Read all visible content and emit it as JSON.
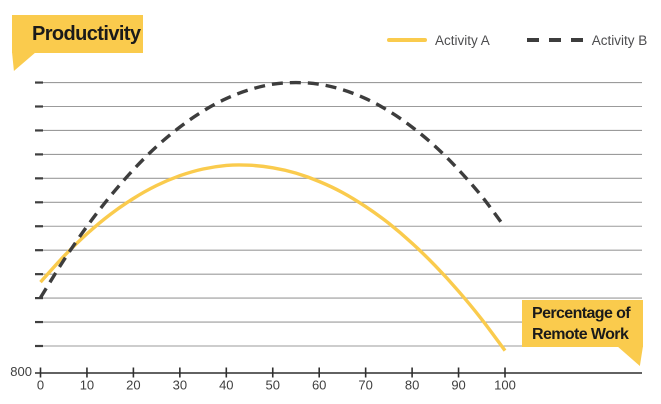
{
  "colors": {
    "accent": "#FACB4D",
    "accent_line": "#FACB4D",
    "dark_line": "#3D3D3D",
    "gridline": "#9B9B9B",
    "gridline_tick": "#3F3F3F",
    "axis": "#2F2F2F"
  },
  "callouts": {
    "y_axis_label": "Productivity",
    "x_axis_label_line1": "Percentage of",
    "x_axis_label_line2": "Remote Work"
  },
  "legend": [
    {
      "label": "Activity A",
      "style": "solid",
      "color": "#FACB4D"
    },
    {
      "label": "Activity B",
      "style": "dashed",
      "color": "#3D3D3D"
    }
  ],
  "chart_data": {
    "type": "line",
    "title": "",
    "xlabel": "Percentage of Remote Work",
    "ylabel": "Productivity",
    "grid": true,
    "legend_position": "top-right",
    "x_axis": {
      "ticks": [
        0,
        10,
        20,
        30,
        40,
        50,
        60,
        70,
        80,
        90,
        100
      ],
      "range": [
        0,
        100
      ]
    },
    "y_axis": {
      "baseline_label": "800",
      "gridline_count": 12,
      "note": "horizontal gridlines are unlabeled; series values are in gridline units (0 = bottom gridline, 11 = top gridline); axis baseline below grid is labeled 800"
    },
    "x": [
      0,
      5,
      10,
      15,
      20,
      25,
      30,
      35,
      40,
      45,
      50,
      55,
      60,
      65,
      70,
      75,
      80,
      85,
      90,
      95,
      100
    ],
    "series": [
      {
        "name": "Activity A",
        "line_style": "solid",
        "color": "#FACB4D",
        "peak": {
          "x": 43,
          "value": 7.56
        },
        "values": [
          2.67,
          3.74,
          4.68,
          5.49,
          6.16,
          6.7,
          7.11,
          7.39,
          7.54,
          7.55,
          7.44,
          7.22,
          6.87,
          6.41,
          5.82,
          5.12,
          4.29,
          3.35,
          2.29,
          1.11,
          -0.19
        ]
      },
      {
        "name": "Activity B",
        "line_style": "dashed",
        "color": "#3D3D3D",
        "peak": {
          "x": 55,
          "value": 11.0
        },
        "values": [
          2.02,
          3.58,
          4.99,
          6.25,
          7.36,
          8.33,
          9.14,
          9.81,
          10.33,
          10.7,
          10.93,
          11.0,
          10.93,
          10.7,
          10.33,
          9.81,
          9.14,
          8.33,
          7.36,
          6.25,
          4.95
        ]
      }
    ]
  }
}
